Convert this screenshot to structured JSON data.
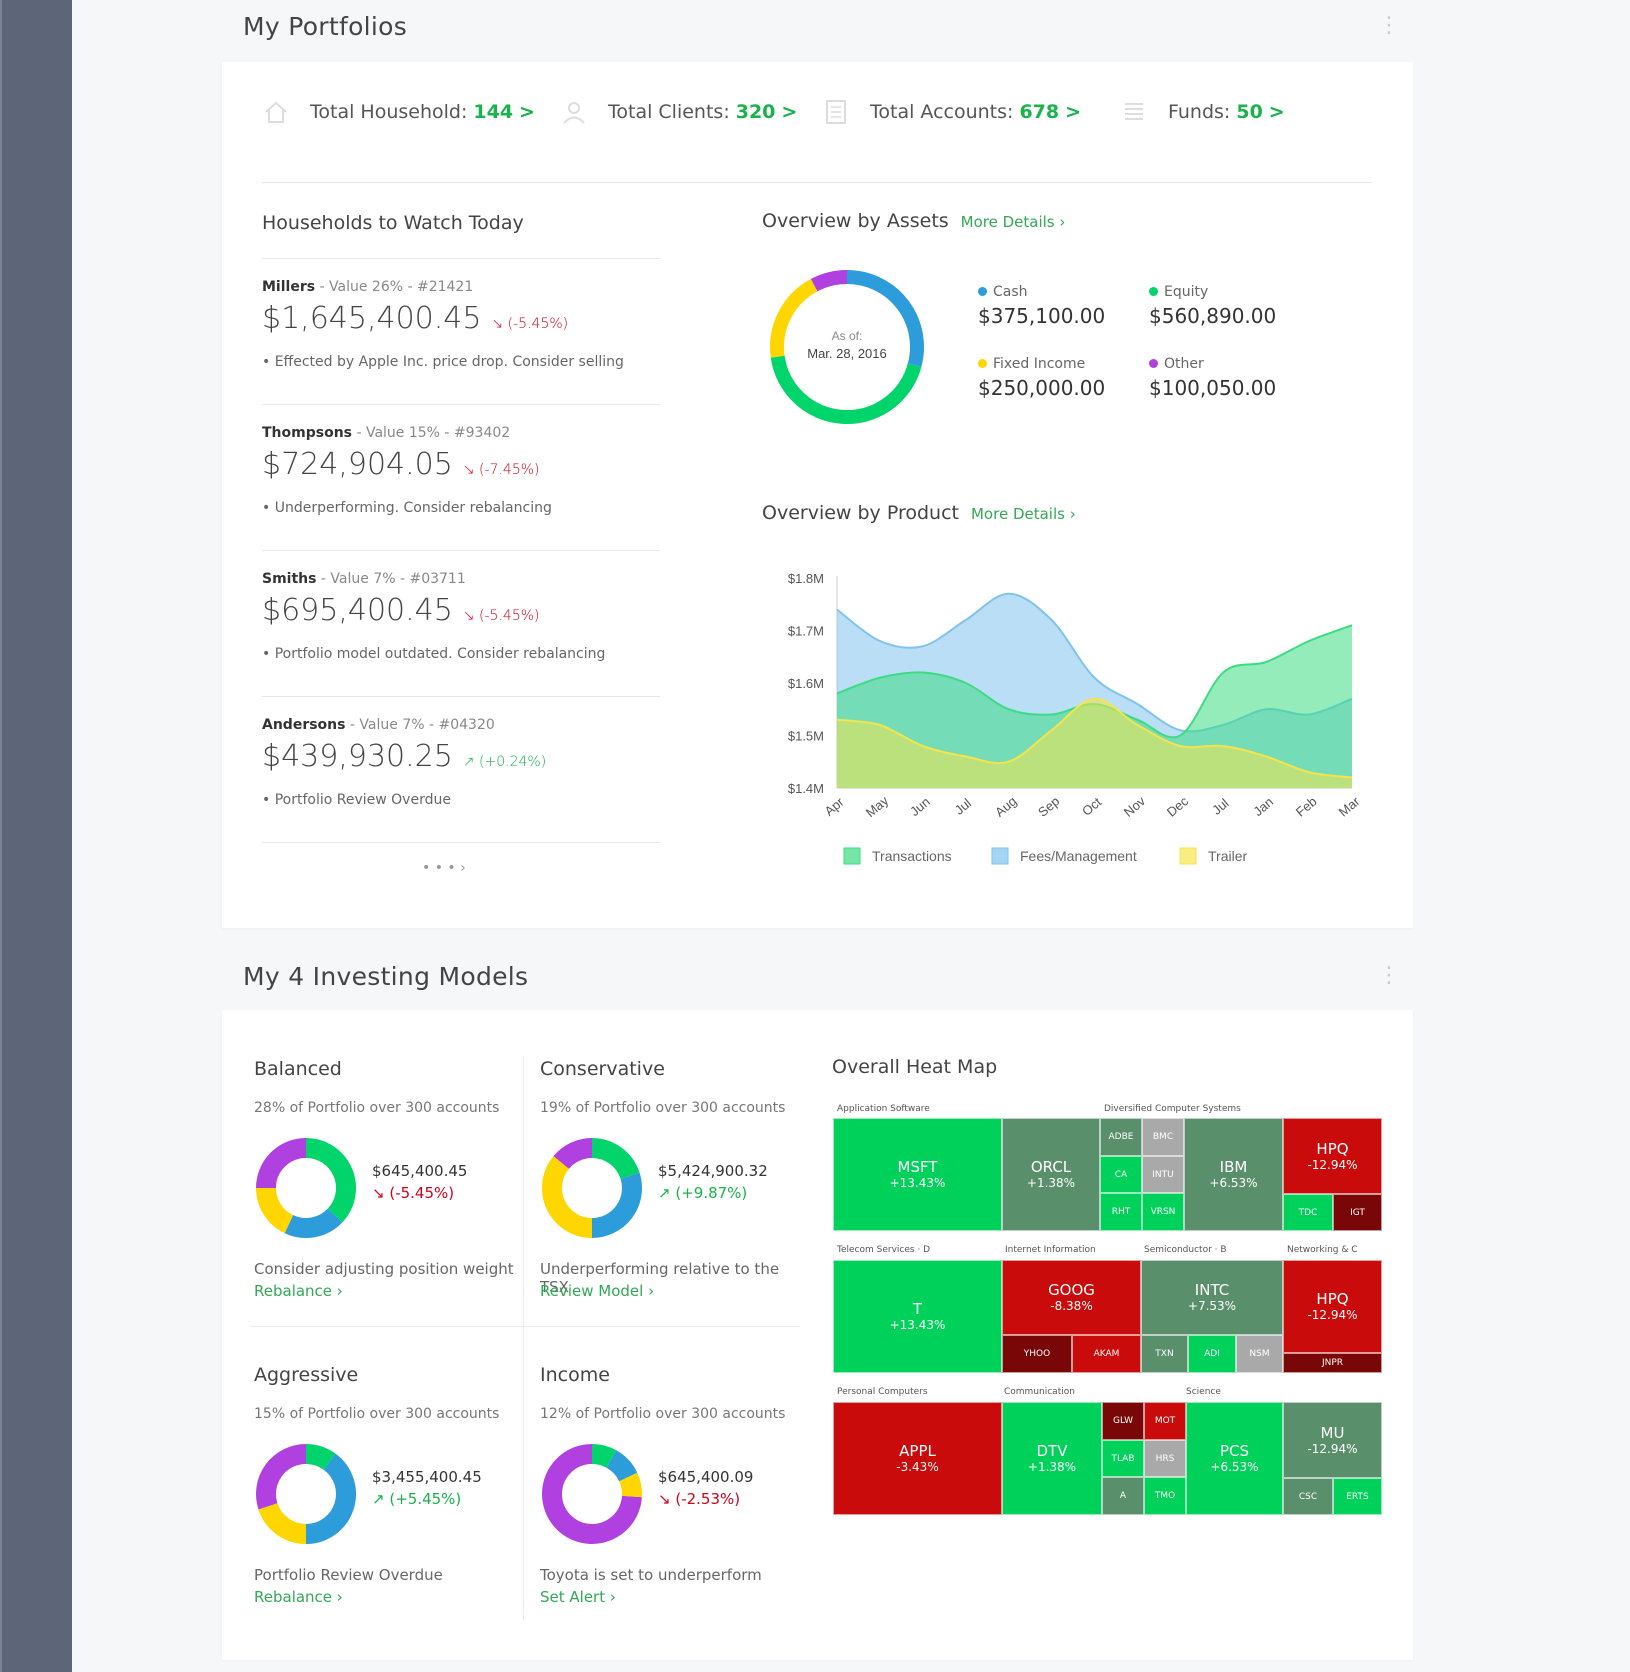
{
  "portfolios": {
    "title": "My Portfolios",
    "stats": [
      {
        "label": "Total Household:",
        "value": "144",
        "icon": "house-icon"
      },
      {
        "label": "Total Clients:",
        "value": "320",
        "icon": "person-icon"
      },
      {
        "label": "Total Accounts:",
        "value": "678",
        "icon": "document-icon"
      },
      {
        "label": "Funds:",
        "value": "50",
        "icon": "list-icon"
      }
    ],
    "chevron": ">",
    "households": {
      "title": "Households to Watch Today",
      "items": [
        {
          "name": "Millers",
          "meta": " - Value 26% - #21421",
          "value": "$1,645,400.45",
          "arrow": "↘",
          "change": "(-5.45%)",
          "note": "• Effected by Apple Inc. price drop. Consider selling"
        },
        {
          "name": "Thompsons",
          "meta": " - Value 15% -  #93402",
          "value": "$724,904.05",
          "arrow": "↘",
          "change": "(-7.45%)",
          "note": "• Underperforming. Consider rebalancing"
        },
        {
          "name": "Smiths",
          "meta": " - Value 7% -  #03711",
          "value": "$695,400.45",
          "arrow": "↘",
          "change": "(-5.45%)",
          "note": "• Portfolio model outdated. Consider rebalancing"
        },
        {
          "name": "Andersons",
          "meta": "  - Value 7% -  #04320",
          "value": "$439,930.25",
          "arrow": "↗",
          "change": "(+0.24%)",
          "note": "• Portfolio Review Overdue"
        }
      ],
      "pager": "• • •   ›"
    },
    "assets": {
      "title": "Overview by Assets",
      "more": "More Details  ›",
      "as_of_label": "As of:",
      "as_of_date": "Mar. 28, 2016",
      "items": [
        {
          "label": "Cash",
          "amount": "$375,100.00",
          "color": "#2d9cdb"
        },
        {
          "label": "Equity",
          "amount": "$560,890.00",
          "color": "#00d46a"
        },
        {
          "label": "Fixed Income",
          "amount": "$250,000.00",
          "color": "#ffd600"
        },
        {
          "label": "Other",
          "amount": "$100,050.00",
          "color": "#b040e0"
        }
      ]
    },
    "product": {
      "title": "Overview by Product",
      "more": "More Details  ›"
    }
  },
  "chart_data": {
    "type": "area",
    "title": "Overview by Product",
    "categories": [
      "Apr",
      "May",
      "Jun",
      "Jul",
      "Aug",
      "Sep",
      "Oct",
      "Nov",
      "Dec",
      "Jul",
      "Jan",
      "Feb",
      "Mar"
    ],
    "ylim": [
      1.4,
      1.8
    ],
    "y_ticks": [
      "$1.8M",
      "$1.7M",
      "$1.6M",
      "$1.5M",
      "$1.4M"
    ],
    "series": [
      {
        "name": "Fees/Management",
        "color": "#7fc3ee",
        "values": [
          1.74,
          1.68,
          1.67,
          1.72,
          1.77,
          1.72,
          1.61,
          1.56,
          1.51,
          1.52,
          1.55,
          1.54,
          1.57
        ]
      },
      {
        "name": "Transactions",
        "color": "#3ddc84",
        "values": [
          1.58,
          1.61,
          1.62,
          1.6,
          1.55,
          1.54,
          1.56,
          1.53,
          1.5,
          1.62,
          1.64,
          1.68,
          1.71
        ]
      },
      {
        "name": "Trailer",
        "color": "#f5e44d",
        "values": [
          1.53,
          1.52,
          1.48,
          1.46,
          1.45,
          1.51,
          1.57,
          1.52,
          1.48,
          1.48,
          1.46,
          1.43,
          1.42
        ]
      }
    ]
  },
  "models": {
    "title": "My 4 Investing Models",
    "items": [
      {
        "name": "Balanced",
        "sub": "28% of Portfolio over 300 accounts",
        "amount": "$645,400.45",
        "arrow": "↘",
        "change": "(-5.45%)",
        "dir": "down",
        "note": "Consider adjusting position weight",
        "link": "Rebalance ›",
        "segments": [
          {
            "v": 0.37,
            "c": "#00d46a"
          },
          {
            "v": 0.2,
            "c": "#2d9cdb"
          },
          {
            "v": 0.18,
            "c": "#ffd600"
          },
          {
            "v": 0.25,
            "c": "#b040e0"
          }
        ]
      },
      {
        "name": "Conservative",
        "sub": "19% of Portfolio over 300 accounts",
        "amount": "$5,424,900.32",
        "arrow": "↗",
        "change": "(+9.87%)",
        "dir": "up",
        "note": "Underperforming relative to the TSX",
        "link": "Review Model ›",
        "segments": [
          {
            "v": 0.2,
            "c": "#00d46a"
          },
          {
            "v": 0.3,
            "c": "#2d9cdb"
          },
          {
            "v": 0.36,
            "c": "#ffd600"
          },
          {
            "v": 0.14,
            "c": "#b040e0"
          }
        ]
      },
      {
        "name": "Aggressive",
        "sub": "15% of Portfolio over 300 accounts",
        "amount": "$3,455,400.45",
        "arrow": "↗",
        "change": "(+5.45%)",
        "dir": "up",
        "note": "Portfolio Review Overdue",
        "link": "Rebalance  ›",
        "segments": [
          {
            "v": 0.1,
            "c": "#00d46a"
          },
          {
            "v": 0.4,
            "c": "#2d9cdb"
          },
          {
            "v": 0.2,
            "c": "#ffd600"
          },
          {
            "v": 0.3,
            "c": "#b040e0"
          }
        ]
      },
      {
        "name": "Income",
        "sub": "12% of Portfolio over 300 accounts",
        "amount": "$645,400.09",
        "arrow": "↘",
        "change": "(-2.53%)",
        "dir": "down",
        "note": "Toyota is set to underperform",
        "link": "Set Alert  ›",
        "segments": [
          {
            "v": 0.08,
            "c": "#00d46a"
          },
          {
            "v": 0.1,
            "c": "#2d9cdb"
          },
          {
            "v": 0.08,
            "c": "#ffd600"
          },
          {
            "v": 0.74,
            "c": "#b040e0"
          }
        ]
      }
    ]
  },
  "heatmap": {
    "title": "Overall Heat Map",
    "groups": [
      "Application Software",
      "Diversified Computer Systems",
      "Telecom Services · D",
      "Internet Information",
      "Semiconductor · B",
      "Networking & C",
      "Personal Computers",
      "Communication",
      "Science"
    ],
    "tiles": [
      {
        "t": "MSFT",
        "p": "+13.43%"
      },
      {
        "t": "ORCL",
        "p": "+1.38%"
      },
      {
        "t": "ADBE"
      },
      {
        "t": "BMC"
      },
      {
        "t": "CA"
      },
      {
        "t": "INTU"
      },
      {
        "t": "RHT"
      },
      {
        "t": "VRSN"
      },
      {
        "t": "IBM",
        "p": "+6.53%"
      },
      {
        "t": "HPQ",
        "p": "-12.94%"
      },
      {
        "t": "TDC"
      },
      {
        "t": "IGT"
      },
      {
        "t": "T",
        "p": "+13.43%"
      },
      {
        "t": "GOOG",
        "p": "-8.38%"
      },
      {
        "t": "YHOO"
      },
      {
        "t": "AKAM"
      },
      {
        "t": "INTC",
        "p": "+7.53%"
      },
      {
        "t": "TXN"
      },
      {
        "t": "ADI"
      },
      {
        "t": "NSM"
      },
      {
        "t": "HPQ",
        "p": "-12.94%"
      },
      {
        "t": "JNPR"
      },
      {
        "t": "APPL",
        "p": "-3.43%"
      },
      {
        "t": "DTV",
        "p": "+1.38%"
      },
      {
        "t": "GLW"
      },
      {
        "t": "MOT"
      },
      {
        "t": "TLAB"
      },
      {
        "t": "HRS"
      },
      {
        "t": "A"
      },
      {
        "t": "TMO"
      },
      {
        "t": "PCS",
        "p": "+6.53%"
      },
      {
        "t": "MU",
        "p": "-12.94%"
      },
      {
        "t": "CSC"
      },
      {
        "t": "ERTS"
      }
    ]
  }
}
